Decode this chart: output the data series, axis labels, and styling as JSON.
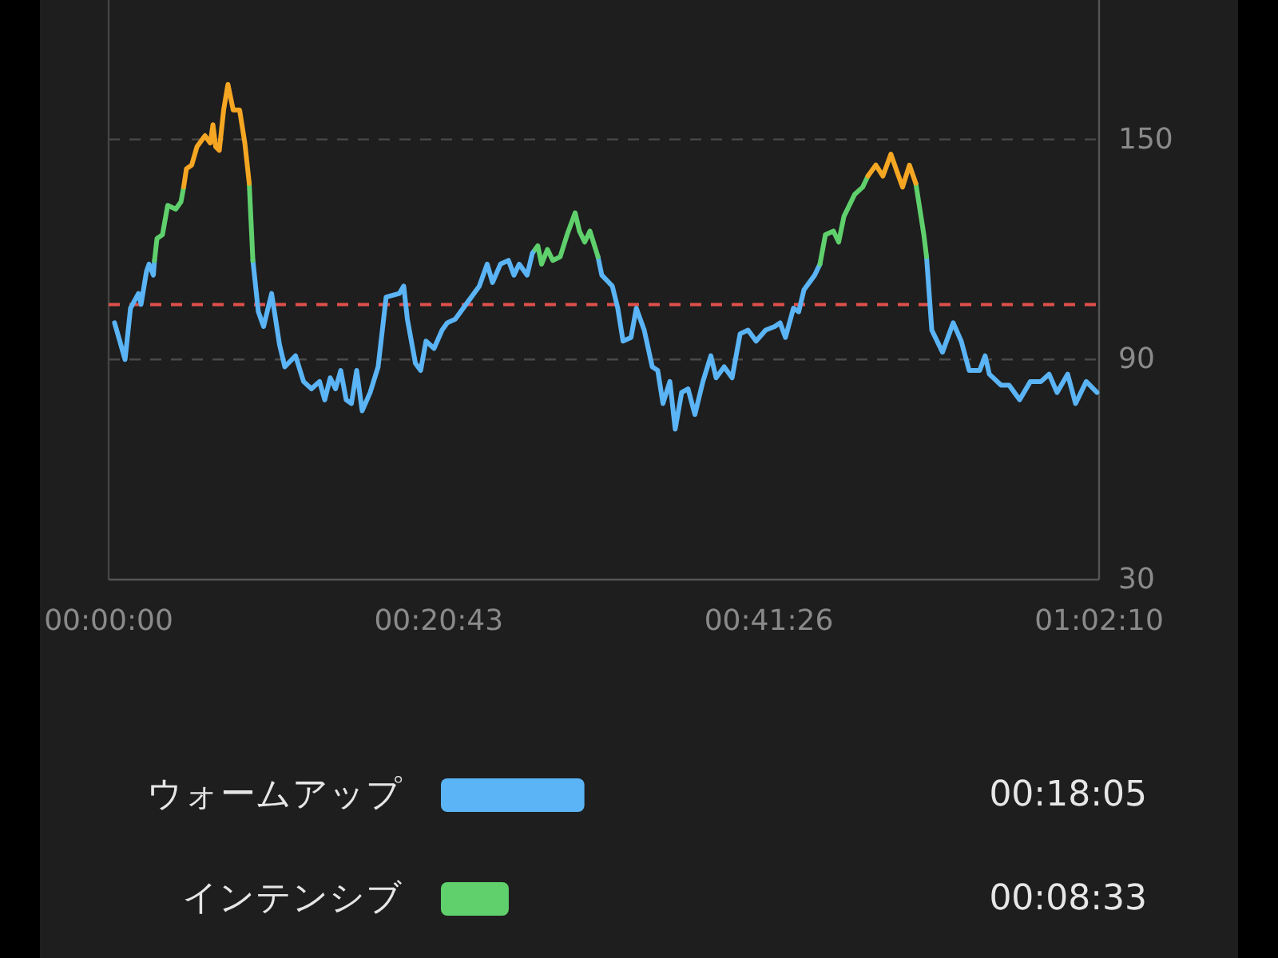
{
  "chart_data": [
    {
      "type": "line",
      "xlim": [
        0,
        1.0361
      ],
      "ylim": [
        30,
        188
      ],
      "yticks": [
        30,
        90,
        150
      ],
      "grid": "y",
      "xticks": [
        {
          "value": 0,
          "label": "00:00:00"
        },
        {
          "value": 0.3453,
          "label": "00:20:43"
        },
        {
          "value": 0.6906,
          "label": "00:41:26"
        },
        {
          "value": 1.0361,
          "label": "01:02:10"
        }
      ],
      "ref_lines": [
        {
          "axis": "y",
          "value": 105,
          "color": "#e0504a",
          "line_style": "dashed"
        }
      ],
      "series": [
        {
          "color": "#5ab4f5",
          "x": [
            0.0062,
            0.0172,
            0.0229,
            0.0312,
            0.0339,
            0.0396,
            0.0423,
            0.0468,
            0.048
          ],
          "values": [
            100,
            90,
            104,
            108,
            105,
            114,
            116,
            113,
            117
          ]
        },
        {
          "color": "#5ab4f5",
          "x": [
            0.1509,
            0.1566,
            0.1621,
            0.1705,
            0.1788,
            0.1843,
            0.1955,
            0.2039,
            0.2122,
            0.2206,
            0.2261,
            0.2318,
            0.2373,
            0.2428,
            0.2485,
            0.254,
            0.2595,
            0.2652,
            0.2736,
            0.2819,
            0.2903,
            0.3041,
            0.3087,
            0.3125,
            0.3209,
            0.3264,
            0.332,
            0.3404,
            0.3488,
            0.3543,
            0.3626,
            0.3738,
            0.3877,
            0.396,
            0.4016,
            0.4099,
            0.4183,
            0.424,
            0.4295,
            0.4378,
            0.4433,
            0.4462
          ],
          "values": [
            117,
            103,
            99,
            108,
            94,
            88,
            91,
            84,
            82,
            84,
            79,
            85,
            82,
            87,
            79,
            78,
            87,
            76,
            81,
            88,
            107,
            108,
            110,
            101,
            89,
            87,
            95,
            93,
            98,
            100,
            101,
            105,
            110,
            116,
            111,
            116,
            117,
            113,
            116,
            113,
            119,
            120
          ]
        },
        {
          "color": "#5ab4f5",
          "x": [
            0.5119,
            0.5159,
            0.5269,
            0.5326,
            0.5381,
            0.5465,
            0.552,
            0.5603,
            0.5687,
            0.5744,
            0.5799,
            0.5871,
            0.5927,
            0.5994,
            0.6061,
            0.6133,
            0.6217,
            0.63,
            0.6355,
            0.6439,
            0.6522,
            0.6606,
            0.6689,
            0.6773,
            0.6873,
            0.6968,
            0.7024,
            0.708,
            0.7164,
            0.7219,
            0.7274,
            0.7386,
            0.7441
          ],
          "values": [
            118,
            113,
            110,
            104,
            95,
            96,
            104,
            98,
            88,
            87,
            78,
            84,
            71,
            81,
            82,
            75,
            84,
            91,
            85,
            88,
            85,
            97,
            98,
            95,
            98,
            99,
            100,
            96,
            104,
            103,
            109,
            113,
            116
          ]
        },
        {
          "color": "#5ab4f5",
          "x": [
            0.8556,
            0.8611,
            0.8723,
            0.8835,
            0.8919,
            0.9002,
            0.9112,
            0.9169,
            0.9213,
            0.9336,
            0.942,
            0.953,
            0.9642,
            0.9754,
            0.9838,
            0.9921,
            1.0032,
            1.0115,
            1.0227,
            1.0339
          ],
          "values": [
            118,
            98,
            92,
            100,
            95,
            87,
            87,
            91,
            86,
            83,
            83,
            79,
            84,
            84,
            86,
            81,
            86,
            78,
            84,
            81
          ]
        },
        {
          "color": "#5fd06c",
          "x": [
            0.048,
            0.0506,
            0.0563,
            0.0618,
            0.0702,
            0.0757,
            0.0785
          ],
          "values": [
            117,
            123,
            124,
            132,
            131,
            133,
            137
          ]
        },
        {
          "color": "#5fd06c",
          "x": [
            0.1471,
            0.1509
          ],
          "values": [
            138,
            117
          ]
        },
        {
          "color": "#5fd06c",
          "x": [
            0.4462,
            0.449,
            0.4529,
            0.4591,
            0.4646,
            0.4724,
            0.4796,
            0.488,
            0.4925,
            0.498,
            0.5035,
            0.5119
          ],
          "values": [
            120,
            121,
            116,
            120,
            117,
            118,
            124,
            130,
            125,
            122,
            125,
            118
          ]
        },
        {
          "color": "#5fd06c",
          "x": [
            0.7441,
            0.7498,
            0.7582,
            0.7637,
            0.7692,
            0.7804,
            0.7888,
            0.7943
          ],
          "values": [
            116,
            124,
            125,
            122,
            129,
            135,
            137,
            140
          ]
        },
        {
          "color": "#5fd06c",
          "x": [
            0.8444,
            0.8528,
            0.8556
          ],
          "values": [
            138,
            124,
            118
          ]
        },
        {
          "color": "#f5a623",
          "x": [
            0.0785,
            0.0814,
            0.0869,
            0.0924,
            0.1008,
            0.1064,
            0.1091,
            0.112,
            0.1158,
            0.1203,
            0.1248,
            0.1303,
            0.137,
            0.1425,
            0.1471
          ],
          "values": [
            137,
            142,
            143,
            148,
            151,
            149,
            154,
            148,
            147,
            158,
            165,
            158,
            158,
            149,
            138
          ]
        },
        {
          "color": "#f5a623",
          "x": [
            0.7943,
            0.8026,
            0.81,
            0.8183,
            0.825,
            0.8305,
            0.8377,
            0.8444
          ],
          "values": [
            140,
            143,
            140,
            146,
            141,
            137,
            143,
            138
          ]
        }
      ]
    },
    {
      "type": "bar",
      "orientation": "horizontal",
      "categories": [
        "ウォームアップ",
        "インテンシブ"
      ],
      "values": [
        0.3014,
        0.1425
      ],
      "colors": [
        "#5ab4f5",
        "#5fd06c"
      ],
      "value_labels": [
        "00:18:05",
        "00:08:33"
      ]
    }
  ]
}
